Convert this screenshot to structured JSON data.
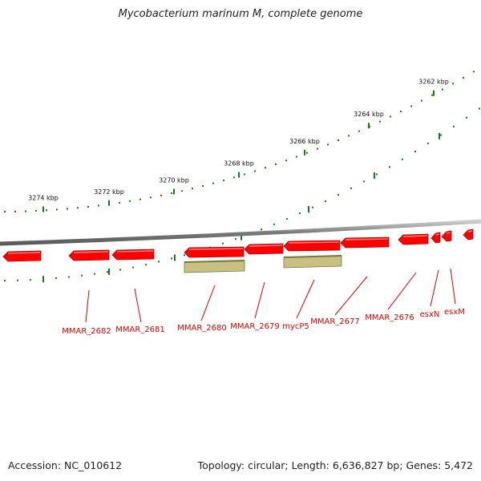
{
  "title": "Mycobacterium marinum M, complete genome",
  "footer": {
    "accession": "Accession: NC_010612",
    "summary": "Topology: circular; Length: 6,636,827 bp; Genes: 5,472"
  },
  "colors": {
    "gene": "#ff0000",
    "gene_dark": "#b00000",
    "other_feature": "#c8c080",
    "other_feature_dark": "#7a7440",
    "ticks": "#1a7a1a",
    "backbone": "#7a7a7a",
    "label": "#e00000"
  },
  "scale_labels": [
    "3274 kbp",
    "3272 kbp",
    "3270 kbp",
    "3268 kbp",
    "3266 kbp",
    "3264 kbp",
    "3262 kbp"
  ],
  "genes": [
    {
      "name": "MMAR_2682"
    },
    {
      "name": "MMAR_2681"
    },
    {
      "name": "MMAR_2680"
    },
    {
      "name": "MMAR_2679"
    },
    {
      "name": "mycP5"
    },
    {
      "name": "MMAR_2677"
    },
    {
      "name": "MMAR_2676"
    },
    {
      "name": "esxN"
    },
    {
      "name": "esxM"
    }
  ]
}
